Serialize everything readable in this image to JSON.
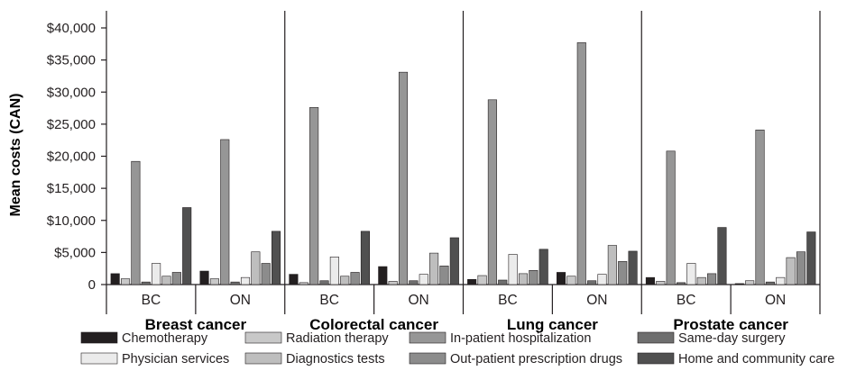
{
  "chart_data": {
    "type": "bar",
    "ylabel": "Mean costs (CAN)",
    "ylim": [
      0,
      40000
    ],
    "yticks": [
      "0",
      "$5,000",
      "$10,000",
      "$15,000",
      "$20,000",
      "$25,000",
      "$30,000",
      "$35,000",
      "$40,000"
    ],
    "yticks_values": [
      0,
      5000,
      10000,
      15000,
      20000,
      25000,
      30000,
      35000,
      40000
    ],
    "grid": false,
    "legend_position": "bottom",
    "groups": [
      "Breast cancer",
      "Colorectal cancer",
      "Lung cancer",
      "Prostate cancer"
    ],
    "subcategories": [
      "BC",
      "ON"
    ],
    "series": [
      {
        "name": "Chemotherapy",
        "color": "#231f20",
        "values": [
          1700,
          2100,
          1600,
          2800,
          800,
          1900,
          1100,
          150
        ]
      },
      {
        "name": "Radiation therapy",
        "color": "#c8c8c8",
        "values": [
          900,
          900,
          300,
          500,
          1400,
          1300,
          500,
          600
        ]
      },
      {
        "name": "In-patient hospitalization",
        "color": "#969696",
        "values": [
          19200,
          22600,
          27600,
          33100,
          28800,
          37700,
          20800,
          24100
        ]
      },
      {
        "name": "Same-day surgery",
        "color": "#6e6e6e",
        "values": [
          400,
          400,
          600,
          600,
          700,
          600,
          300,
          400
        ]
      },
      {
        "name": "Physician services",
        "color": "#ebebeb",
        "values": [
          3300,
          1100,
          4300,
          1600,
          4700,
          1600,
          3300,
          1100
        ]
      },
      {
        "name": "Diagnostics tests",
        "color": "#bebebe",
        "values": [
          1300,
          5100,
          1300,
          4900,
          1700,
          6100,
          1100,
          4200
        ]
      },
      {
        "name": "Out-patient prescription drugs",
        "color": "#8c8c8c",
        "values": [
          1900,
          3300,
          1900,
          2900,
          2200,
          3600,
          1700,
          5100
        ]
      },
      {
        "name": "Home and community care",
        "color": "#505050",
        "values": [
          12000,
          8300,
          8300,
          7300,
          5500,
          5200,
          8900,
          8200
        ]
      }
    ]
  }
}
